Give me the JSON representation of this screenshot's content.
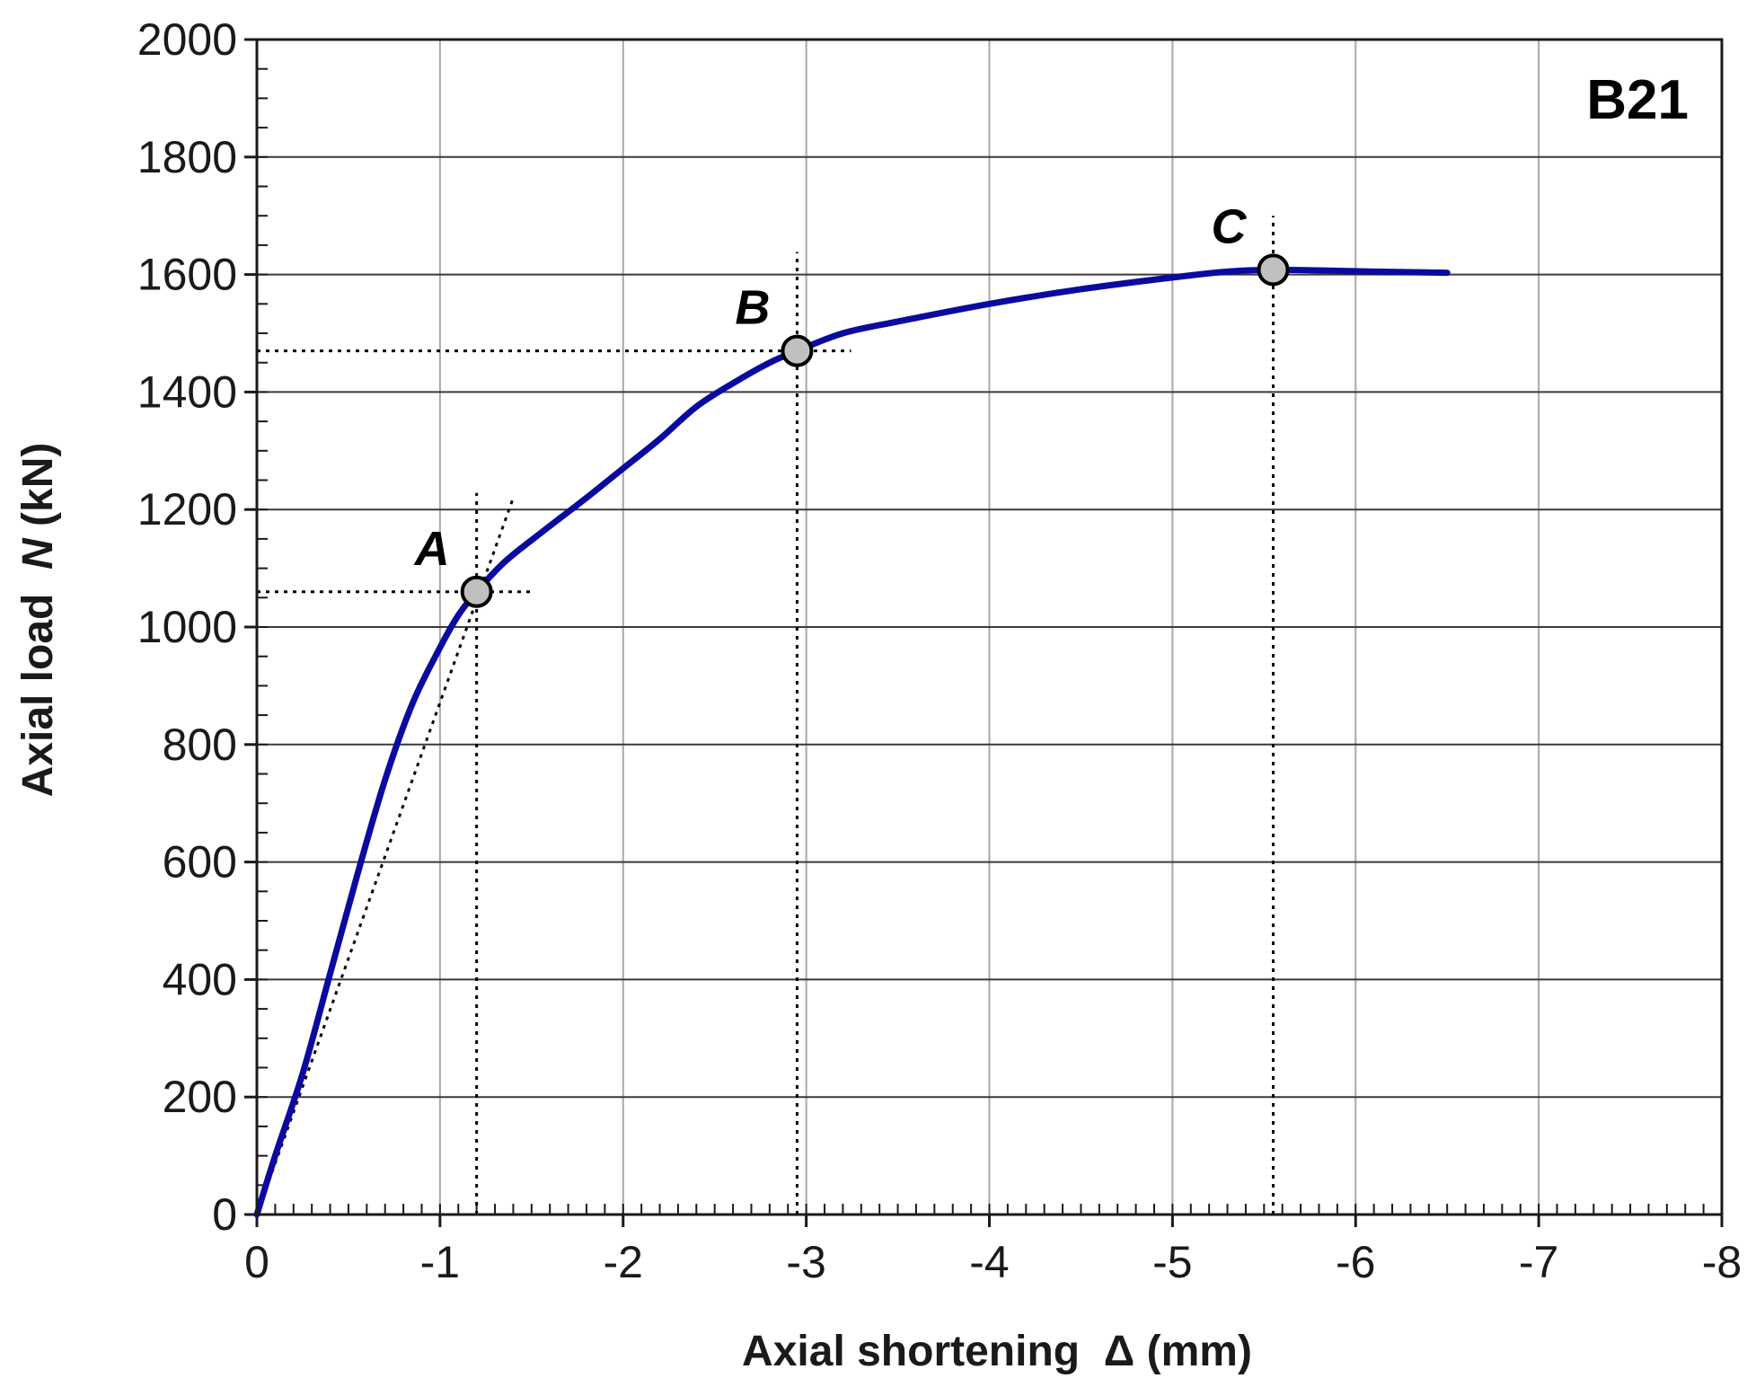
{
  "chart_data": {
    "type": "line",
    "panel_label": "B21",
    "xlabel": "Axial shortening  Δ (mm)",
    "ylabel_prefix": "Axial load  ",
    "ylabel_symbol": "N",
    "ylabel_suffix": " (kN)",
    "xlim": [
      0,
      -8
    ],
    "ylim": [
      0,
      2000
    ],
    "x_ticks": [
      "0",
      "-1",
      "-2",
      "-3",
      "-4",
      "-5",
      "-6",
      "-7",
      "-8"
    ],
    "y_ticks": [
      "0",
      "200",
      "400",
      "600",
      "800",
      "1000",
      "1200",
      "1400",
      "1600",
      "1800",
      "2000"
    ],
    "x_tick_values": [
      0,
      -1,
      -2,
      -3,
      -4,
      -5,
      -6,
      -7,
      -8
    ],
    "y_tick_values": [
      0,
      200,
      400,
      600,
      800,
      1000,
      1200,
      1400,
      1600,
      1800,
      2000
    ],
    "grid": true,
    "line_color": "#0a0aa0",
    "marker_color": "#c0c0c0",
    "series": [
      {
        "x": [
          0,
          -0.1,
          -0.25,
          -0.4,
          -0.55,
          -0.7,
          -0.85,
          -1.0,
          -1.1,
          -1.2,
          -1.35,
          -1.55,
          -1.8,
          -2.0,
          -2.2,
          -2.4,
          -2.6,
          -2.8,
          -2.95,
          -3.2,
          -3.5,
          -4.0,
          -4.5,
          -5.0,
          -5.3,
          -5.55,
          -5.8,
          -6.1,
          -6.5
        ],
        "y": [
          0,
          100,
          240,
          410,
          580,
          740,
          870,
          965,
          1020,
          1060,
          1110,
          1160,
          1220,
          1270,
          1320,
          1375,
          1415,
          1450,
          1470,
          1500,
          1520,
          1550,
          1575,
          1595,
          1605,
          1608,
          1607,
          1605,
          1603
        ]
      }
    ],
    "reference_line": {
      "x": [
        0,
        -1.4
      ],
      "y": [
        0,
        1220
      ]
    },
    "points": [
      {
        "label": "A",
        "x": -1.2,
        "y": 1060
      },
      {
        "label": "B",
        "x": -2.95,
        "y": 1470
      },
      {
        "label": "C",
        "x": -5.55,
        "y": 1608
      }
    ]
  }
}
